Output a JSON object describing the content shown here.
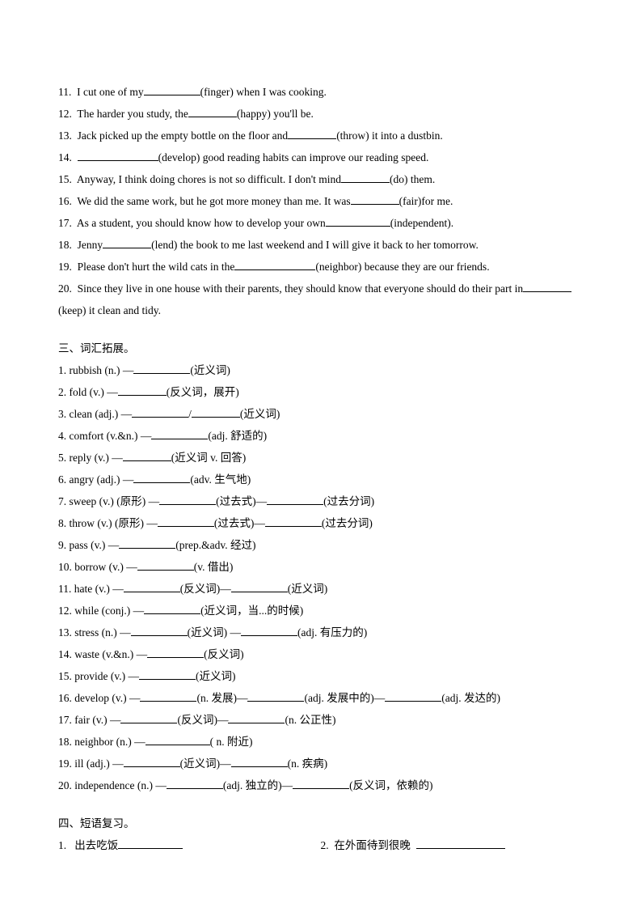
{
  "section2": {
    "items": [
      {
        "num": "11.",
        "pre": "I cut one of my",
        "hint": "(finger) when I was cooking."
      },
      {
        "num": "12.",
        "pre": "The harder you study, the",
        "hint": "(happy) you'll be."
      },
      {
        "num": "13.",
        "pre": "Jack picked up the empty bottle on the floor and",
        "hint": "(throw) it into a dustbin."
      },
      {
        "num": "14.",
        "pre": "",
        "hint": "(develop) good reading habits can improve our reading speed."
      },
      {
        "num": "15.",
        "pre": "Anyway, I think doing chores is not so difficult. I don't mind",
        "hint": "(do) them."
      },
      {
        "num": "16.",
        "pre": "We did the same work, but he got more money than me. It was",
        "hint": "(fair)for me."
      },
      {
        "num": "17.",
        "pre": "As a student, you should know how to develop your own",
        "hint": "(independent)."
      },
      {
        "num": "18.",
        "pre": "Jenny",
        "hint": "(lend) the book to me last weekend and I will give it back to her tomorrow."
      },
      {
        "num": "19.",
        "pre": "Please don't hurt the wild cats in the",
        "hint": "(neighbor) because they are our friends."
      },
      {
        "num": "20.",
        "pre": "Since they live in one house with their parents, they should know that everyone should do their part in",
        "hint": ""
      }
    ],
    "tail": "(keep) it clean and tidy."
  },
  "section3": {
    "title": "三、词汇拓展。",
    "items": [
      {
        "num": "1.",
        "word": "rubbish (n.)  —",
        "tail": "(近义词)"
      },
      {
        "num": "2.",
        "word": "fold (v.)  —",
        "tail": "(反义词，展开)"
      },
      {
        "num": "3.",
        "word": "clean (adj.)  —",
        "mid": "/",
        "tail": "(近义词)"
      },
      {
        "num": "4.",
        "word": "comfort   (v.&n.)  —",
        "tail": "(adj. 舒适的)"
      },
      {
        "num": "5.",
        "word": "reply (v.)  —",
        "tail": "(近义词 v.  回答)"
      },
      {
        "num": "6.",
        "word": "angry (adj.)  —",
        "tail": "(adv. 生气地)"
      },
      {
        "num": "7.",
        "word": "sweep (v.) (原形)  —",
        "mid": "(过去式)—",
        "tail": "(过去分词)"
      },
      {
        "num": "8.",
        "word": "throw (v.) (原形)   —",
        "mid": "(过去式)—",
        "tail": "(过去分词)"
      },
      {
        "num": "9.",
        "word": "pass (v.)  —",
        "tail": "(prep.&adv.  经过)"
      },
      {
        "num": "10.",
        "word": "borrow (v.)  —",
        "tail": "(v.  借出)"
      },
      {
        "num": "11.",
        "word": "hate (v.)  —",
        "mid": "(反义词)—",
        "tail": "(近义词)"
      },
      {
        "num": "12.",
        "word": "while (conj.)  —",
        "tail": "(近义词，当...的时候)"
      },
      {
        "num": "13.",
        "word": "stress (n.)  —",
        "mid": "(近义词)  —",
        "tail": "(adj. 有压力的)"
      },
      {
        "num": "14.",
        "word": "waste (v.&n.)  —",
        "tail": "(反义词)"
      },
      {
        "num": "15.",
        "word": "provide (v.)  —",
        "tail": "(近义词)"
      },
      {
        "num": "16.",
        "word": "develop (v.)  —",
        "mid": "(n. 发展)—",
        "mid2": "(adj. 发展中的)—",
        "tail": "(adj. 发达的)"
      },
      {
        "num": "17.",
        "word": "fair (v.)  —",
        "mid": "(反义词)—",
        "tail": "(n. 公正性)"
      },
      {
        "num": "18.",
        "word": "neighbor (n.)  —",
        "tail": "( n. 附近)"
      },
      {
        "num": "19.",
        "word": "ill (adj.)  —",
        "mid": "(近义词)—",
        "tail": "(n. 疾病)"
      },
      {
        "num": "20.",
        "word": "independence (n.)  —",
        "mid": "(adj. 独立的)—",
        "tail": "(反义词，依赖的)"
      }
    ]
  },
  "section4": {
    "title": "四、短语复习。",
    "left": {
      "num": "1.",
      "text": "出去吃饭"
    },
    "right": {
      "num": "2.",
      "text": "在外面待到很晚"
    }
  }
}
